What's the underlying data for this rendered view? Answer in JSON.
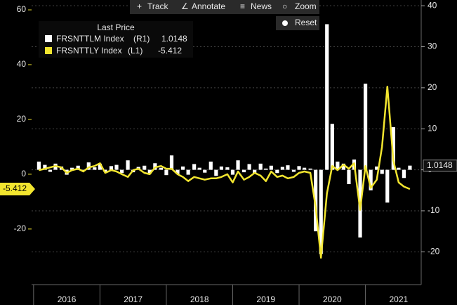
{
  "chart_data": {
    "type": "bar-line",
    "legend_title": "Last Price",
    "x": [
      2016.08,
      2016.17,
      2016.25,
      2016.33,
      2016.42,
      2016.5,
      2016.58,
      2016.67,
      2016.75,
      2016.83,
      2016.92,
      2017.0,
      2017.08,
      2017.17,
      2017.25,
      2017.33,
      2017.42,
      2017.5,
      2017.58,
      2017.67,
      2017.75,
      2017.83,
      2017.92,
      2018.0,
      2018.08,
      2018.17,
      2018.25,
      2018.33,
      2018.42,
      2018.5,
      2018.58,
      2018.67,
      2018.75,
      2018.83,
      2018.92,
      2019.0,
      2019.08,
      2019.17,
      2019.25,
      2019.33,
      2019.42,
      2019.5,
      2019.58,
      2019.67,
      2019.75,
      2019.83,
      2019.92,
      2020.0,
      2020.08,
      2020.17,
      2020.25,
      2020.33,
      2020.42,
      2020.5,
      2020.58,
      2020.67,
      2020.75,
      2020.83,
      2020.92,
      2021.0,
      2021.08,
      2021.17,
      2021.25,
      2021.33,
      2021.42,
      2021.5,
      2021.58,
      2021.67
    ],
    "series": [
      {
        "name": "FRSNTTLM Index",
        "axis_tag": "(R1)",
        "axis": "y2",
        "kind": "bar",
        "color": "#ffffff",
        "values": [
          2.0,
          1.2,
          -0.5,
          1.5,
          0.8,
          -1.2,
          0.5,
          1.0,
          -0.3,
          1.8,
          0.6,
          1.5,
          -0.5,
          0.9,
          1.2,
          -0.8,
          2.3,
          -0.6,
          0.7,
          1.0,
          -0.9,
          1.6,
          0.5,
          -1.3,
          3.5,
          -1.0,
          0.8,
          -1.2,
          1.4,
          0.5,
          -0.7,
          2.0,
          -1.5,
          0.8,
          0.6,
          -1.2,
          2.3,
          -0.6,
          1.4,
          -1.0,
          1.5,
          0.3,
          1.0,
          -0.8,
          0.7,
          1.1,
          -0.5,
          0.9,
          0.5,
          0.3,
          -15.0,
          -20.5,
          35.5,
          11.2,
          2.0,
          1.5,
          -3.5,
          2.5,
          -16.5,
          21.0,
          -5.0,
          0.8,
          -1.0,
          -8.0,
          10.4,
          0.5,
          -2.0,
          1.0148
        ]
      },
      {
        "name": "FRSNTTLY Index",
        "axis_tag": "(L1)",
        "axis": "y",
        "kind": "line",
        "color": "#f2e52f",
        "values": [
          1.5,
          2.0,
          2.5,
          3.0,
          2.5,
          0.5,
          1.5,
          2.0,
          1.0,
          2.5,
          3.0,
          4.0,
          0.5,
          1.5,
          1.0,
          0,
          -1,
          1.5,
          2,
          0.5,
          0,
          2.5,
          3,
          2,
          2,
          0,
          -1,
          -2.5,
          -1,
          -1.5,
          -2,
          -1.5,
          -1.5,
          -1,
          0,
          -3,
          1,
          -2,
          -1,
          0.5,
          -0.5,
          -2.5,
          1,
          -1,
          -0.5,
          -1.5,
          -1,
          0.5,
          1,
          0.5,
          -12,
          -30.5,
          -7,
          3,
          1.5,
          3.5,
          2,
          4,
          -13,
          3,
          -5,
          -2,
          10,
          32,
          5,
          -3,
          -4.5,
          -5.412
        ]
      }
    ],
    "xlim": [
      2015.97,
      2021.84
    ],
    "xticks": [
      {
        "value": 2016.5,
        "label": "2016"
      },
      {
        "value": 2017.5,
        "label": "2017"
      },
      {
        "value": 2018.5,
        "label": "2018"
      },
      {
        "value": 2019.5,
        "label": "2019"
      },
      {
        "value": 2020.5,
        "label": "2020"
      },
      {
        "value": 2021.5,
        "label": "2021"
      }
    ],
    "ylim": [
      -40.3,
      63.6
    ],
    "yticks": [
      -20,
      0,
      20,
      40,
      60
    ],
    "y2lim": [
      -28,
      41.4
    ],
    "y2ticks": [
      -20,
      -10,
      0,
      10,
      20,
      30,
      40
    ],
    "grid": true
  },
  "toolbar": {
    "buttons": [
      "Track",
      "Annotate",
      "News",
      "Zoom"
    ],
    "reset": "Reset"
  }
}
